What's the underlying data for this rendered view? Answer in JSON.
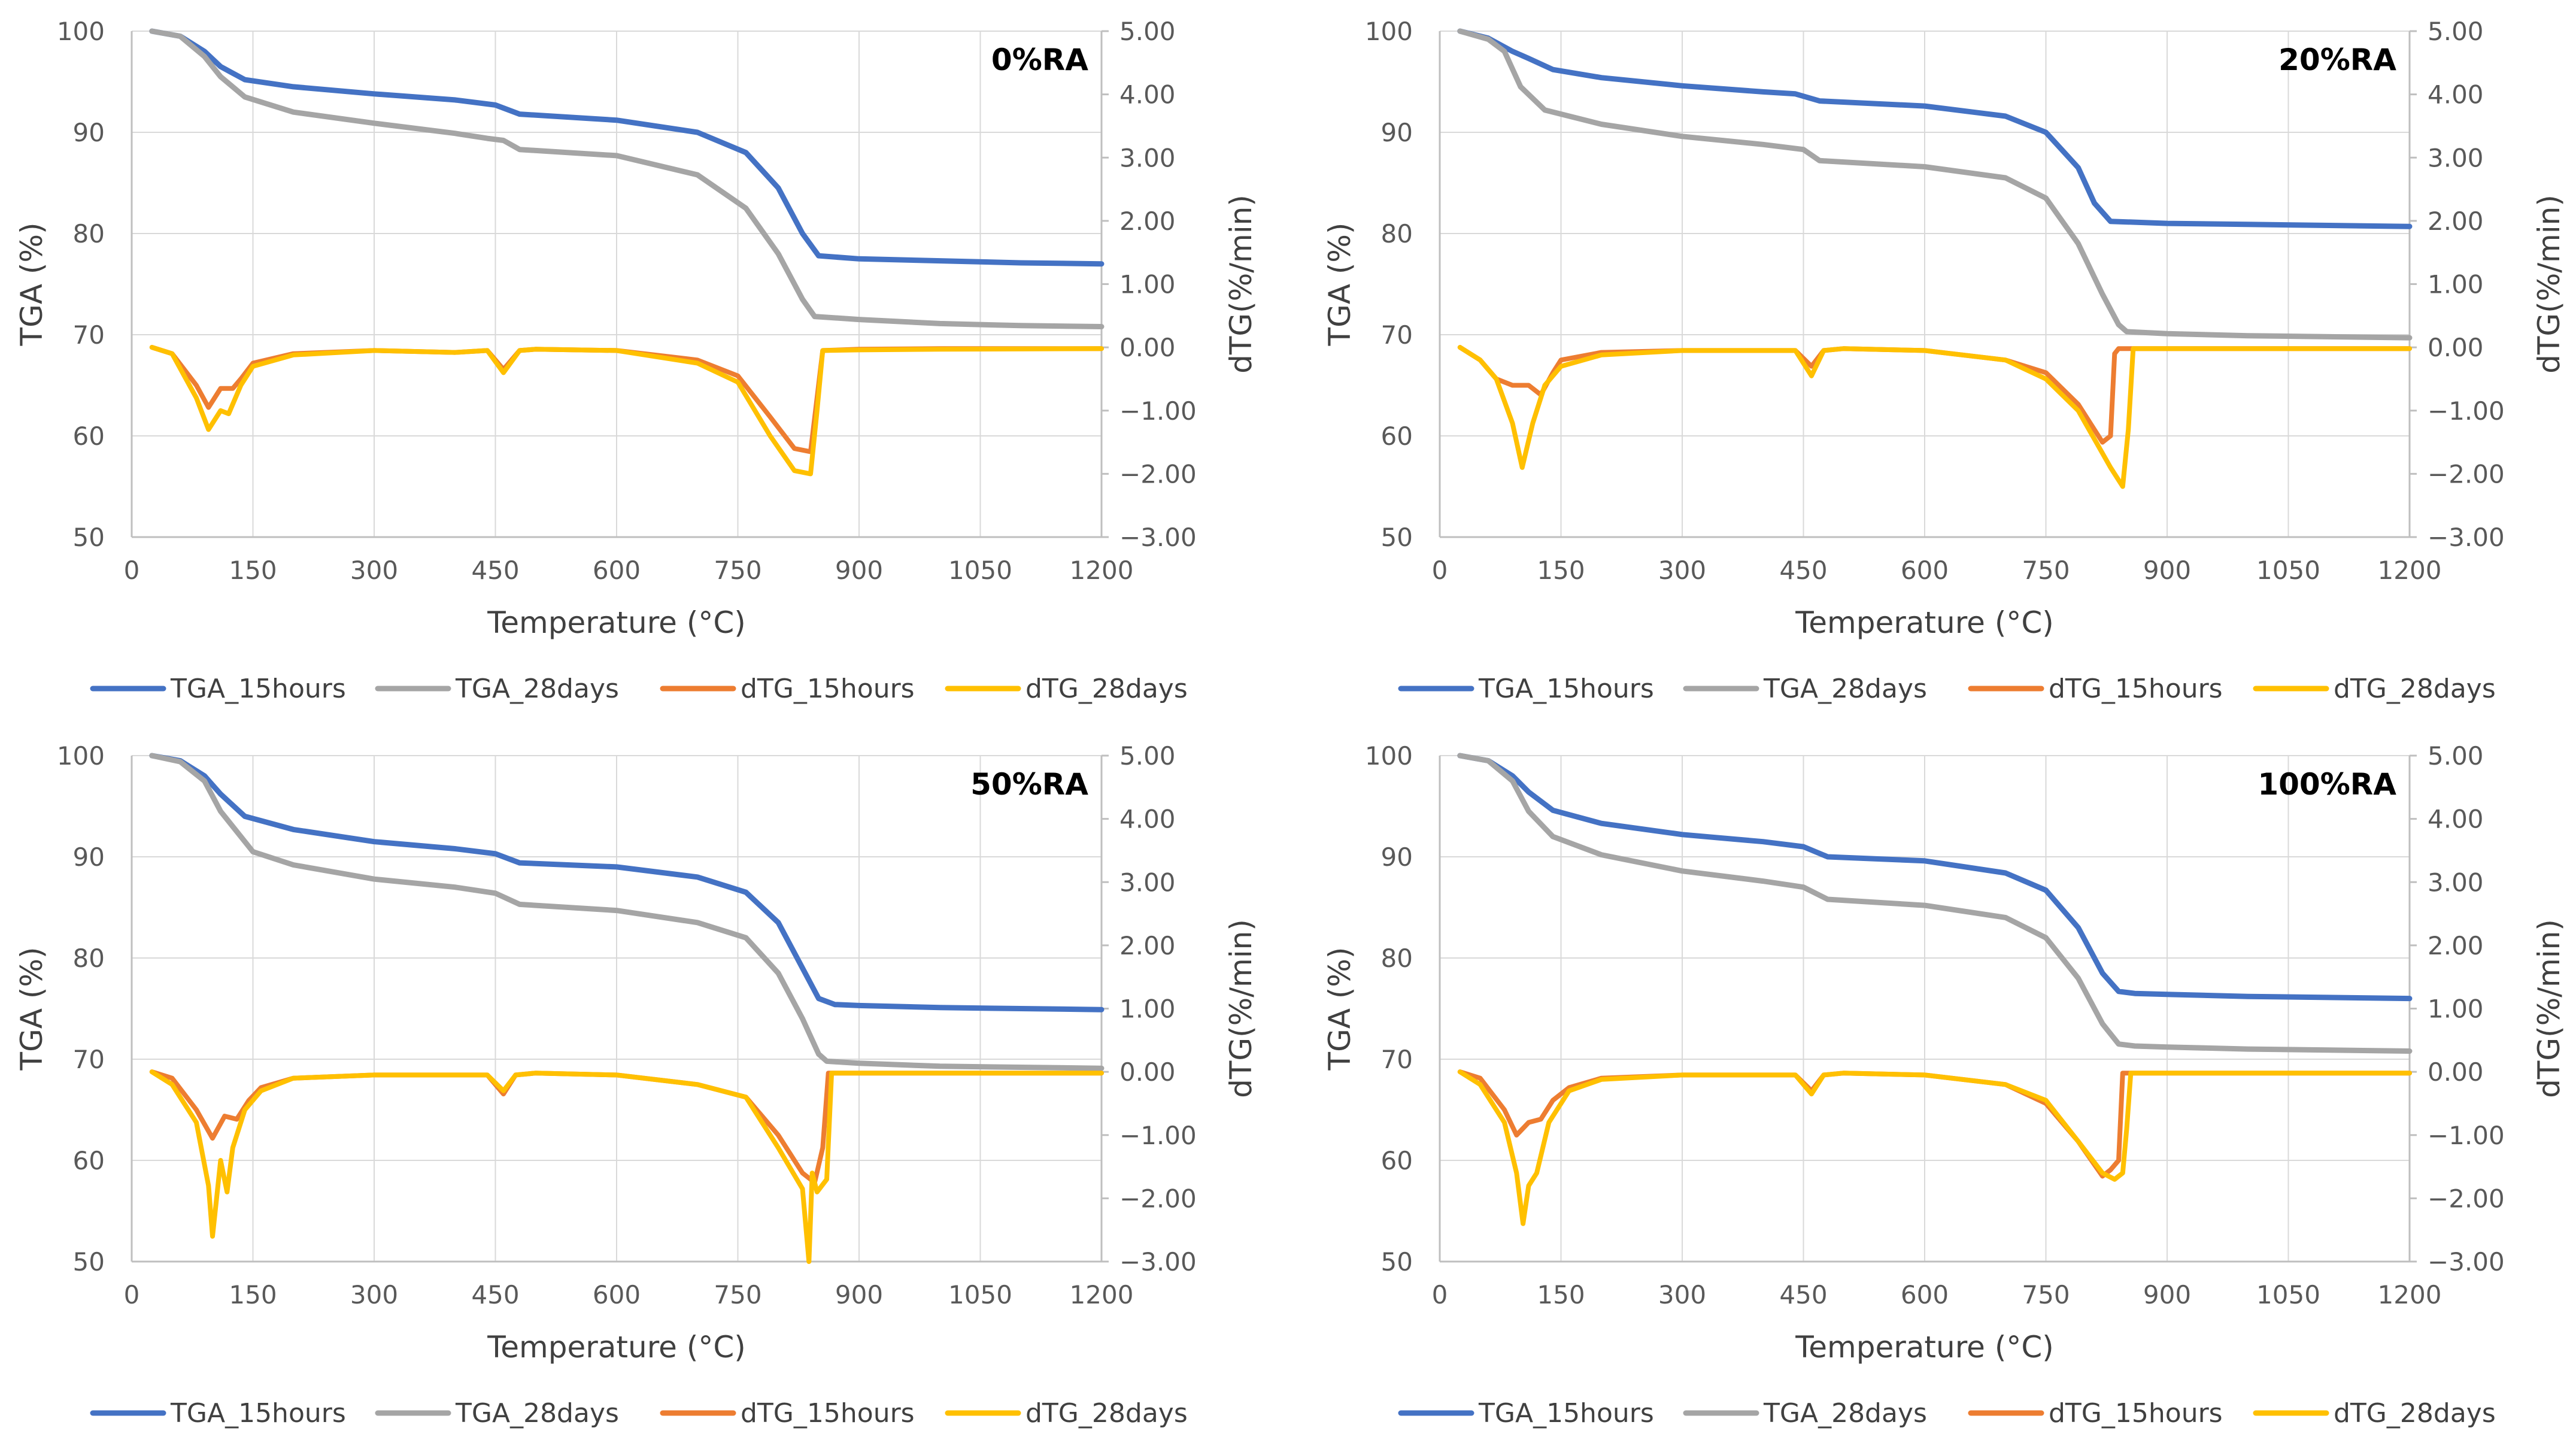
{
  "colors": {
    "TGA_15hours": "#4472C4",
    "TGA_28days": "#A5A5A5",
    "dTG_15hours": "#ED7D31",
    "dTG_28days": "#FFC000",
    "grid": "#D9D9D9",
    "axis_line": "#BFBFBF"
  },
  "chart_data": [
    {
      "type": "line",
      "title": "0%RA",
      "xlabel": "Temperature (°C)",
      "ylabel_left": "TGA (%)",
      "ylabel_right": "dTG(%/min)",
      "xlim": [
        0,
        1200
      ],
      "ylim_left": [
        50,
        100
      ],
      "ylim_right": [
        -3,
        5
      ],
      "x_ticks": [
        "0",
        "150",
        "300",
        "450",
        "600",
        "750",
        "900",
        "1050",
        "1200"
      ],
      "y_left_ticks": [
        "50",
        "60",
        "70",
        "80",
        "90",
        "100"
      ],
      "y_right_ticks": [
        "−3.00",
        "−2.00",
        "−1.00",
        "0.00",
        "1.00",
        "2.00",
        "3.00",
        "4.00",
        "5.00"
      ],
      "legend": [
        "TGA_15hours",
        "TGA_28days",
        "dTG_15hours",
        "dTG_28days"
      ],
      "series": [
        {
          "name": "TGA_15hours",
          "axis": "left",
          "x": [
            25,
            60,
            90,
            110,
            140,
            200,
            300,
            400,
            450,
            480,
            600,
            700,
            760,
            800,
            830,
            850,
            900,
            1000,
            1100,
            1200
          ],
          "y": [
            100,
            99.5,
            98,
            96.5,
            95.2,
            94.5,
            93.8,
            93.2,
            92.7,
            91.8,
            91.2,
            90,
            88,
            84.5,
            80,
            77.8,
            77.5,
            77.3,
            77.1,
            77
          ]
        },
        {
          "name": "TGA_28days",
          "axis": "left",
          "x": [
            25,
            60,
            90,
            110,
            140,
            200,
            300,
            400,
            440,
            460,
            480,
            600,
            700,
            760,
            800,
            830,
            845,
            900,
            1000,
            1100,
            1200
          ],
          "y": [
            100,
            99.5,
            97.5,
            95.5,
            93.5,
            92,
            90.9,
            89.9,
            89.4,
            89.2,
            88.3,
            87.7,
            85.8,
            82.5,
            78,
            73.5,
            71.8,
            71.5,
            71.1,
            70.9,
            70.8
          ]
        },
        {
          "name": "dTG_15hours",
          "axis": "right",
          "x": [
            25,
            50,
            80,
            95,
            110,
            125,
            135,
            150,
            200,
            300,
            400,
            440,
            460,
            480,
            500,
            600,
            700,
            750,
            790,
            820,
            840,
            848,
            855,
            900,
            1000,
            1200
          ],
          "y": [
            0,
            -0.1,
            -0.6,
            -0.95,
            -0.65,
            -0.65,
            -0.5,
            -0.25,
            -0.1,
            -0.05,
            -0.08,
            -0.05,
            -0.35,
            -0.05,
            -0.03,
            -0.05,
            -0.2,
            -0.45,
            -1.1,
            -1.6,
            -1.65,
            -0.8,
            -0.05,
            -0.03,
            -0.02,
            -0.02
          ]
        },
        {
          "name": "dTG_28days",
          "axis": "right",
          "x": [
            25,
            50,
            80,
            95,
            110,
            120,
            135,
            150,
            200,
            300,
            400,
            440,
            460,
            480,
            500,
            600,
            700,
            750,
            790,
            820,
            840,
            848,
            855,
            900,
            1000,
            1200
          ],
          "y": [
            0,
            -0.1,
            -0.8,
            -1.3,
            -1.0,
            -1.05,
            -0.6,
            -0.3,
            -0.12,
            -0.05,
            -0.08,
            -0.05,
            -0.4,
            -0.05,
            -0.03,
            -0.05,
            -0.25,
            -0.55,
            -1.4,
            -1.95,
            -2.0,
            -1.0,
            -0.05,
            -0.04,
            -0.03,
            -0.02
          ]
        }
      ]
    },
    {
      "type": "line",
      "title": "20%RA",
      "xlabel": "Temperature (°C)",
      "ylabel_left": "TGA (%)",
      "ylabel_right": "dTG(%/min)",
      "xlim": [
        0,
        1200
      ],
      "ylim_left": [
        50,
        100
      ],
      "ylim_right": [
        -3,
        5
      ],
      "x_ticks": [
        "0",
        "150",
        "300",
        "450",
        "600",
        "750",
        "900",
        "1050",
        "1200"
      ],
      "y_left_ticks": [
        "50",
        "60",
        "70",
        "80",
        "90",
        "100"
      ],
      "y_right_ticks": [
        "−3.00",
        "−2.00",
        "−1.00",
        "0.00",
        "1.00",
        "2.00",
        "3.00",
        "4.00",
        "5.00"
      ],
      "legend": [
        "TGA_15hours",
        "TGA_28days",
        "dTG_15hours",
        "dTG_28days"
      ],
      "series": [
        {
          "name": "TGA_15hours",
          "axis": "left",
          "x": [
            25,
            60,
            90,
            110,
            140,
            200,
            300,
            400,
            440,
            470,
            600,
            700,
            750,
            790,
            810,
            830,
            900,
            1000,
            1100,
            1200
          ],
          "y": [
            100,
            99.3,
            98,
            97.3,
            96.2,
            95.4,
            94.6,
            94,
            93.8,
            93.1,
            92.6,
            91.6,
            90,
            86.5,
            83,
            81.2,
            81,
            80.9,
            80.8,
            80.7
          ]
        },
        {
          "name": "TGA_28days",
          "axis": "left",
          "x": [
            25,
            60,
            80,
            100,
            130,
            200,
            300,
            400,
            450,
            470,
            600,
            700,
            750,
            790,
            820,
            840,
            850,
            900,
            1000,
            1100,
            1200
          ],
          "y": [
            100,
            99.2,
            98,
            94.5,
            92.2,
            90.8,
            89.6,
            88.8,
            88.3,
            87.2,
            86.6,
            85.5,
            83.5,
            79,
            74,
            71,
            70.3,
            70.1,
            69.9,
            69.8,
            69.7
          ]
        },
        {
          "name": "dTG_15hours",
          "axis": "right",
          "x": [
            25,
            50,
            70,
            90,
            110,
            125,
            140,
            150,
            200,
            300,
            400,
            440,
            460,
            475,
            500,
            600,
            700,
            750,
            790,
            820,
            830,
            835,
            840,
            900,
            1000,
            1200
          ],
          "y": [
            0,
            -0.2,
            -0.5,
            -0.6,
            -0.6,
            -0.75,
            -0.4,
            -0.2,
            -0.08,
            -0.05,
            -0.05,
            -0.05,
            -0.3,
            -0.05,
            -0.02,
            -0.05,
            -0.2,
            -0.4,
            -0.9,
            -1.5,
            -1.4,
            -0.1,
            -0.02,
            -0.02,
            -0.02,
            -0.02
          ]
        },
        {
          "name": "dTG_28days",
          "axis": "right",
          "x": [
            25,
            50,
            70,
            90,
            102,
            115,
            130,
            150,
            200,
            300,
            400,
            440,
            460,
            475,
            500,
            600,
            700,
            750,
            790,
            830,
            845,
            852,
            858,
            900,
            1000,
            1200
          ],
          "y": [
            0,
            -0.2,
            -0.5,
            -1.2,
            -1.9,
            -1.2,
            -0.6,
            -0.3,
            -0.12,
            -0.05,
            -0.05,
            -0.05,
            -0.45,
            -0.05,
            -0.02,
            -0.05,
            -0.2,
            -0.5,
            -1.0,
            -1.9,
            -2.2,
            -1.3,
            -0.02,
            -0.02,
            -0.02,
            -0.02
          ]
        }
      ]
    },
    {
      "type": "line",
      "title": "50%RA",
      "xlabel": "Temperature (°C)",
      "ylabel_left": "TGA (%)",
      "ylabel_right": "dTG(%/min)",
      "xlim": [
        0,
        1200
      ],
      "ylim_left": [
        50,
        100
      ],
      "ylim_right": [
        -3,
        5
      ],
      "x_ticks": [
        "0",
        "150",
        "300",
        "450",
        "600",
        "750",
        "900",
        "1050",
        "1200"
      ],
      "y_left_ticks": [
        "50",
        "60",
        "70",
        "80",
        "90",
        "100"
      ],
      "y_right_ticks": [
        "−3.00",
        "−2.00",
        "−1.00",
        "0.00",
        "1.00",
        "2.00",
        "3.00",
        "4.00",
        "5.00"
      ],
      "legend": [
        "TGA_15hours",
        "TGA_28days",
        "dTG_15hours",
        "dTG_28days"
      ],
      "series": [
        {
          "name": "TGA_15hours",
          "axis": "left",
          "x": [
            25,
            60,
            90,
            110,
            140,
            200,
            300,
            400,
            450,
            480,
            600,
            700,
            760,
            800,
            830,
            850,
            870,
            900,
            1000,
            1100,
            1200
          ],
          "y": [
            100,
            99.5,
            98,
            96.2,
            94,
            92.7,
            91.5,
            90.8,
            90.3,
            89.4,
            89,
            88,
            86.5,
            83.5,
            79,
            76,
            75.4,
            75.3,
            75.1,
            75,
            74.9
          ]
        },
        {
          "name": "TGA_28days",
          "axis": "left",
          "x": [
            25,
            60,
            90,
            110,
            150,
            200,
            300,
            400,
            450,
            480,
            600,
            700,
            760,
            800,
            830,
            850,
            860,
            900,
            1000,
            1100,
            1200
          ],
          "y": [
            100,
            99.4,
            97.5,
            94.5,
            90.5,
            89.2,
            87.8,
            87,
            86.4,
            85.3,
            84.7,
            83.5,
            82,
            78.5,
            74,
            70.5,
            69.8,
            69.6,
            69.3,
            69.2,
            69.1
          ]
        },
        {
          "name": "dTG_15hours",
          "axis": "right",
          "x": [
            25,
            50,
            80,
            100,
            115,
            130,
            145,
            160,
            200,
            300,
            400,
            440,
            460,
            475,
            500,
            600,
            700,
            760,
            800,
            830,
            845,
            855,
            862,
            900,
            1000,
            1200
          ],
          "y": [
            0,
            -0.1,
            -0.6,
            -1.05,
            -0.7,
            -0.75,
            -0.45,
            -0.25,
            -0.1,
            -0.05,
            -0.05,
            -0.05,
            -0.35,
            -0.05,
            -0.02,
            -0.05,
            -0.2,
            -0.4,
            -1.0,
            -1.6,
            -1.75,
            -1.2,
            -0.02,
            -0.02,
            -0.02,
            -0.02
          ]
        },
        {
          "name": "dTG_28days",
          "axis": "right",
          "x": [
            25,
            50,
            80,
            95,
            100,
            105,
            110,
            118,
            125,
            140,
            160,
            200,
            300,
            400,
            440,
            460,
            475,
            500,
            600,
            700,
            760,
            800,
            830,
            838,
            842,
            848,
            860,
            866,
            900,
            1000,
            1200
          ],
          "y": [
            0,
            -0.2,
            -0.8,
            -1.8,
            -2.6,
            -2.0,
            -1.4,
            -1.9,
            -1.2,
            -0.6,
            -0.3,
            -0.1,
            -0.05,
            -0.05,
            -0.05,
            -0.3,
            -0.05,
            -0.02,
            -0.05,
            -0.2,
            -0.4,
            -1.2,
            -1.85,
            -3.0,
            -1.6,
            -1.9,
            -1.7,
            -0.02,
            -0.02,
            -0.02,
            -0.02
          ]
        }
      ]
    },
    {
      "type": "line",
      "title": "100%RA",
      "xlabel": "Temperature (°C)",
      "ylabel_left": "TGA (%)",
      "ylabel_right": "dTG(%/min)",
      "xlim": [
        0,
        1200
      ],
      "ylim_left": [
        50,
        100
      ],
      "ylim_right": [
        -3,
        5
      ],
      "x_ticks": [
        "0",
        "150",
        "300",
        "450",
        "600",
        "750",
        "900",
        "1050",
        "1200"
      ],
      "y_left_ticks": [
        "50",
        "60",
        "70",
        "80",
        "90",
        "100"
      ],
      "y_right_ticks": [
        "−3.00",
        "−2.00",
        "−1.00",
        "0.00",
        "1.00",
        "2.00",
        "3.00",
        "4.00",
        "5.00"
      ],
      "legend": [
        "TGA_15hours",
        "TGA_28days",
        "dTG_15hours",
        "dTG_28days"
      ],
      "series": [
        {
          "name": "TGA_15hours",
          "axis": "left",
          "x": [
            25,
            60,
            90,
            110,
            140,
            200,
            300,
            400,
            450,
            480,
            600,
            700,
            750,
            790,
            820,
            840,
            860,
            900,
            1000,
            1100,
            1200
          ],
          "y": [
            100,
            99.5,
            98,
            96.4,
            94.6,
            93.3,
            92.2,
            91.5,
            91,
            90,
            89.6,
            88.4,
            86.7,
            83,
            78.5,
            76.7,
            76.5,
            76.4,
            76.2,
            76.1,
            76
          ]
        },
        {
          "name": "TGA_28days",
          "axis": "left",
          "x": [
            25,
            60,
            90,
            110,
            140,
            200,
            300,
            400,
            450,
            480,
            600,
            700,
            750,
            790,
            820,
            840,
            860,
            900,
            1000,
            1100,
            1200
          ],
          "y": [
            100,
            99.5,
            97.5,
            94.5,
            92,
            90.2,
            88.6,
            87.6,
            87,
            85.8,
            85.2,
            84,
            82,
            78,
            73.5,
            71.5,
            71.3,
            71.2,
            71,
            70.9,
            70.8
          ]
        },
        {
          "name": "dTG_15hours",
          "axis": "right",
          "x": [
            25,
            50,
            80,
            95,
            110,
            125,
            140,
            160,
            200,
            300,
            400,
            440,
            460,
            475,
            500,
            600,
            700,
            750,
            790,
            820,
            830,
            840,
            845,
            900,
            1000,
            1200
          ],
          "y": [
            0,
            -0.1,
            -0.6,
            -1.0,
            -0.8,
            -0.75,
            -0.45,
            -0.25,
            -0.1,
            -0.05,
            -0.05,
            -0.05,
            -0.3,
            -0.05,
            -0.02,
            -0.05,
            -0.2,
            -0.5,
            -1.1,
            -1.65,
            -1.55,
            -1.4,
            -0.02,
            -0.02,
            -0.02,
            -0.02
          ]
        },
        {
          "name": "dTG_28days",
          "axis": "right",
          "x": [
            25,
            50,
            80,
            95,
            103,
            110,
            120,
            135,
            160,
            200,
            300,
            400,
            440,
            460,
            475,
            500,
            600,
            700,
            750,
            790,
            820,
            835,
            845,
            850,
            855,
            900,
            1000,
            1200
          ],
          "y": [
            0,
            -0.2,
            -0.8,
            -1.6,
            -2.4,
            -1.8,
            -1.6,
            -0.8,
            -0.3,
            -0.12,
            -0.05,
            -0.05,
            -0.05,
            -0.35,
            -0.05,
            -0.02,
            -0.05,
            -0.2,
            -0.45,
            -1.1,
            -1.6,
            -1.7,
            -1.6,
            -0.9,
            -0.02,
            -0.02,
            -0.02,
            -0.02
          ]
        }
      ]
    }
  ]
}
